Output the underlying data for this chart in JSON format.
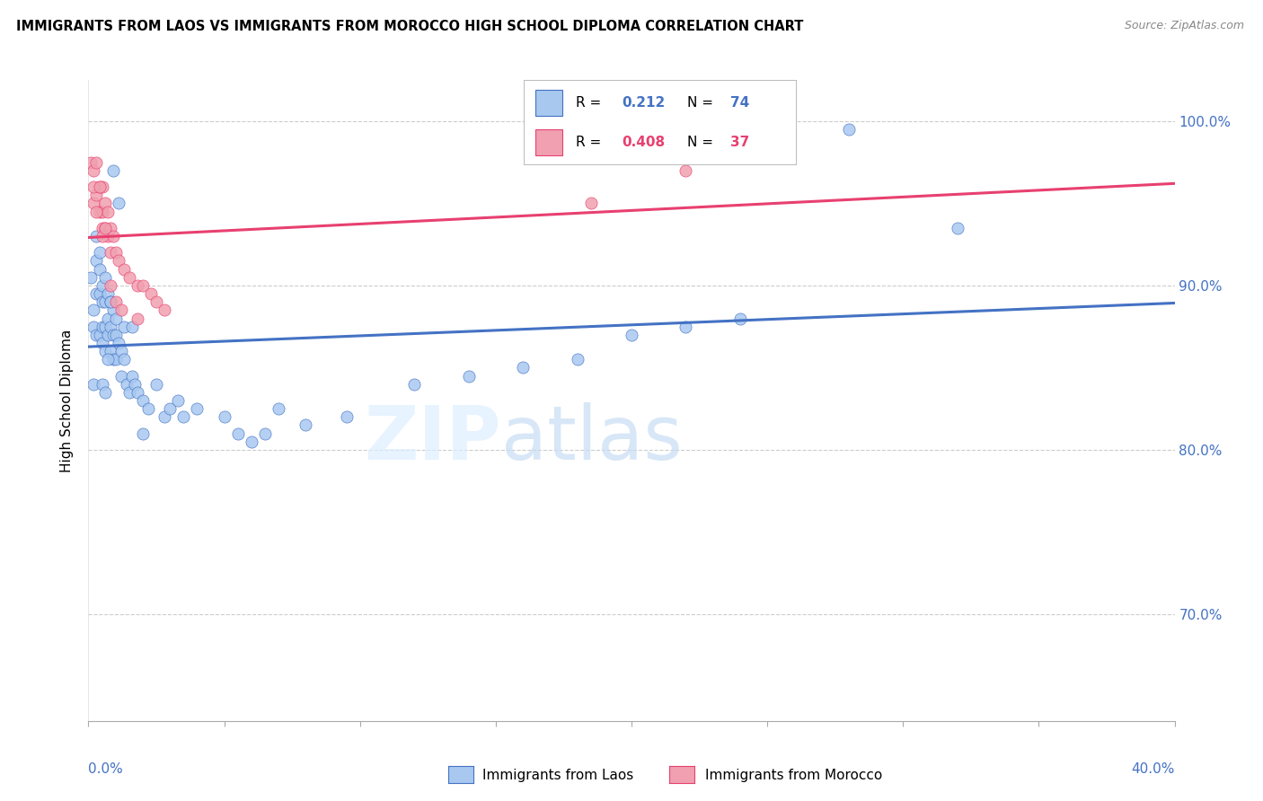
{
  "title": "IMMIGRANTS FROM LAOS VS IMMIGRANTS FROM MOROCCO HIGH SCHOOL DIPLOMA CORRELATION CHART",
  "source": "Source: ZipAtlas.com",
  "ylabel": "High School Diploma",
  "yticks": [
    0.7,
    0.8,
    0.9,
    1.0
  ],
  "ytick_labels": [
    "70.0%",
    "80.0%",
    "90.0%",
    "100.0%"
  ],
  "xmin": 0.0,
  "xmax": 0.4,
  "ymin": 0.635,
  "ymax": 1.025,
  "laos_color": "#a8c8f0",
  "morocco_color": "#f0a0b0",
  "laos_line_color": "#4472c4",
  "morocco_line_color": "#e84070",
  "laos_R": "0.212",
  "laos_N": "74",
  "morocco_R": "0.408",
  "morocco_N": "37",
  "legend_label_laos": "Immigrants from Laos",
  "legend_label_morocco": "Immigrants from Morocco",
  "watermark_zip": "ZIP",
  "watermark_atlas": "atlas",
  "laos_x": [
    0.001,
    0.002,
    0.002,
    0.003,
    0.003,
    0.003,
    0.004,
    0.004,
    0.004,
    0.005,
    0.005,
    0.005,
    0.005,
    0.006,
    0.006,
    0.006,
    0.006,
    0.007,
    0.007,
    0.007,
    0.008,
    0.008,
    0.008,
    0.009,
    0.009,
    0.009,
    0.01,
    0.01,
    0.01,
    0.011,
    0.012,
    0.012,
    0.013,
    0.014,
    0.015,
    0.016,
    0.017,
    0.018,
    0.02,
    0.022,
    0.025,
    0.028,
    0.03,
    0.033,
    0.035,
    0.04,
    0.05,
    0.055,
    0.06,
    0.065,
    0.07,
    0.08,
    0.095,
    0.12,
    0.14,
    0.16,
    0.18,
    0.2,
    0.22,
    0.24,
    0.002,
    0.003,
    0.004,
    0.005,
    0.006,
    0.007,
    0.008,
    0.009,
    0.011,
    0.013,
    0.016,
    0.02,
    0.28,
    0.32
  ],
  "laos_y": [
    0.905,
    0.885,
    0.875,
    0.915,
    0.895,
    0.87,
    0.91,
    0.895,
    0.87,
    0.9,
    0.89,
    0.875,
    0.865,
    0.905,
    0.89,
    0.875,
    0.86,
    0.895,
    0.88,
    0.87,
    0.89,
    0.875,
    0.86,
    0.885,
    0.87,
    0.855,
    0.88,
    0.87,
    0.855,
    0.865,
    0.86,
    0.845,
    0.855,
    0.84,
    0.835,
    0.845,
    0.84,
    0.835,
    0.83,
    0.825,
    0.84,
    0.82,
    0.825,
    0.83,
    0.82,
    0.825,
    0.82,
    0.81,
    0.805,
    0.81,
    0.825,
    0.815,
    0.82,
    0.84,
    0.845,
    0.85,
    0.855,
    0.87,
    0.875,
    0.88,
    0.84,
    0.93,
    0.92,
    0.84,
    0.835,
    0.855,
    0.89,
    0.97,
    0.95,
    0.875,
    0.875,
    0.81,
    0.995,
    0.935
  ],
  "morocco_x": [
    0.001,
    0.002,
    0.002,
    0.003,
    0.003,
    0.004,
    0.004,
    0.005,
    0.005,
    0.005,
    0.006,
    0.006,
    0.007,
    0.007,
    0.008,
    0.008,
    0.009,
    0.01,
    0.011,
    0.013,
    0.015,
    0.018,
    0.02,
    0.023,
    0.025,
    0.028,
    0.002,
    0.003,
    0.004,
    0.005,
    0.006,
    0.008,
    0.01,
    0.012,
    0.018,
    0.185,
    0.22
  ],
  "morocco_y": [
    0.975,
    0.97,
    0.95,
    0.975,
    0.955,
    0.96,
    0.945,
    0.96,
    0.945,
    0.935,
    0.95,
    0.935,
    0.945,
    0.93,
    0.935,
    0.92,
    0.93,
    0.92,
    0.915,
    0.91,
    0.905,
    0.9,
    0.9,
    0.895,
    0.89,
    0.885,
    0.96,
    0.945,
    0.96,
    0.93,
    0.935,
    0.9,
    0.89,
    0.885,
    0.88,
    0.95,
    0.97
  ]
}
